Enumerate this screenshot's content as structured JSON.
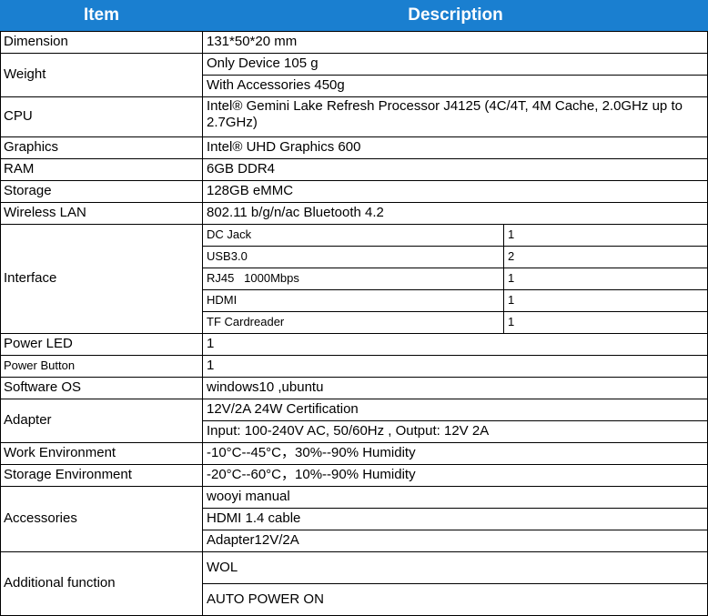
{
  "header": {
    "item": "Item",
    "description": "Description"
  },
  "rows": {
    "dimension": {
      "label": "Dimension",
      "value": "131*50*20 mm"
    },
    "weight": {
      "label": "Weight",
      "values": [
        "Only Device  105 g",
        "With Accessories 450g"
      ]
    },
    "cpu": {
      "label": "CPU",
      "value": "Intel® Gemini Lake Refresh Processor J4125 (4C/4T, 4M Cache, 2.0GHz up to 2.7GHz)"
    },
    "graphics": {
      "label": "Graphics",
      "value": "Intel® UHD Graphics 600"
    },
    "ram": {
      "label": "RAM",
      "value": "6GB DDR4"
    },
    "storage": {
      "label": "Storage",
      "value": "128GB eMMC"
    },
    "wireless": {
      "label": "Wireless LAN",
      "value": "802.11 b/g/n/ac  Bluetooth 4.2"
    },
    "interface": {
      "label": "Interface",
      "items": [
        {
          "name": "DC Jack",
          "count": "1"
        },
        {
          "name": "USB3.0",
          "count": "2"
        },
        {
          "name": "RJ45   1000Mbps",
          "count": "1"
        },
        {
          "name": "HDMI",
          "count": "1"
        },
        {
          "name": "TF Cardreader",
          "count": "1"
        }
      ]
    },
    "power_led": {
      "label": "Power LED",
      "value": "1"
    },
    "power_button": {
      "label": "Power Button",
      "value": "1"
    },
    "software_os": {
      "label": "Software OS",
      "value": "windows10 ,ubuntu"
    },
    "adapter": {
      "label": "Adapter",
      "values": [
        "12V/2A 24W Certification",
        "Input: 100-240V AC, 50/60Hz , Output: 12V 2A"
      ]
    },
    "work_env": {
      "label": "Work Environment",
      "value": "-10°C--45°C，30%--90% Humidity"
    },
    "storage_env": {
      "label": "Storage Environment",
      "value": "-20°C--60°C，10%--90% Humidity"
    },
    "accessories": {
      "label": "Accessories",
      "values": [
        "wooyi manual",
        "HDMI 1.4 cable",
        "Adapter12V/2A"
      ]
    },
    "additional": {
      "label": "Additional function",
      "values": [
        "WOL",
        "AUTO POWER ON"
      ]
    }
  }
}
